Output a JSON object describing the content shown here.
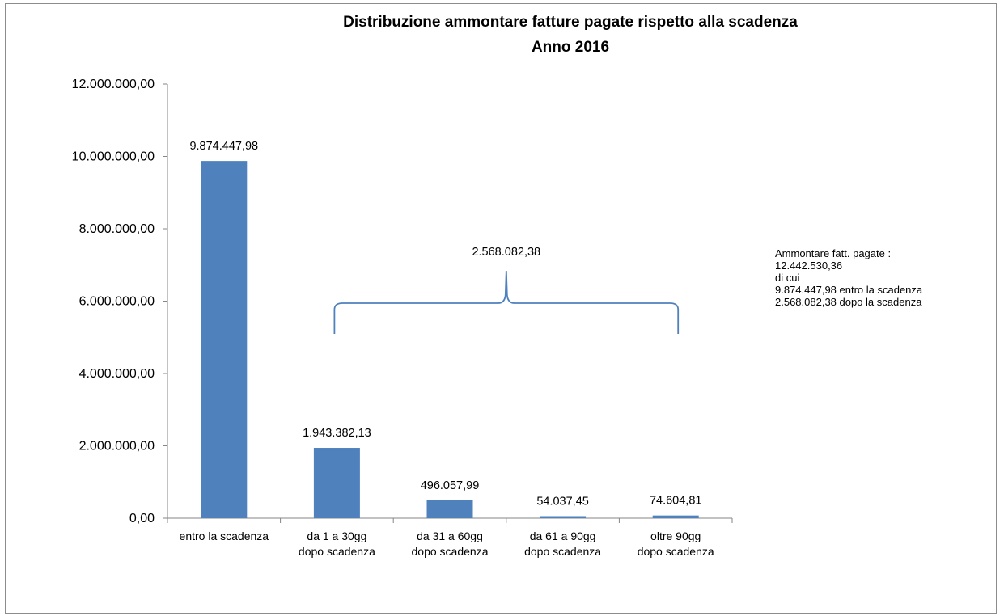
{
  "chart_data": {
    "type": "bar",
    "title": "Distribuzione ammontare fatture pagate  rispetto alla scadenza",
    "subtitle": "Anno 2016",
    "categories": [
      [
        "entro la scadenza"
      ],
      [
        "da 1 a 30gg",
        "dopo scadenza"
      ],
      [
        "da 31 a 60gg",
        "dopo scadenza"
      ],
      [
        "da 61 a 90gg",
        "dopo scadenza"
      ],
      [
        "oltre 90gg",
        "dopo scadenza"
      ]
    ],
    "values": [
      9874447.98,
      1943382.13,
      496057.99,
      54037.45,
      74604.81
    ],
    "data_labels": [
      "9.874.447,98",
      "1.943.382,13",
      "496.057,99",
      "54.037,45",
      "74.604,81"
    ],
    "ylim": [
      0,
      12000000
    ],
    "y_ticks": [
      "0,00",
      "2.000.000,00",
      "4.000.000,00",
      "6.000.000,00",
      "8.000.000,00",
      "10.000.000,00",
      "12.000.000,00"
    ],
    "y_tick_values": [
      0,
      2000000,
      4000000,
      6000000,
      8000000,
      10000000,
      12000000
    ],
    "grid": false,
    "bar_color": "#4f81bd",
    "brace": {
      "label": "2.568.082,38",
      "spans_categories": [
        1,
        4
      ],
      "color": "#4f81bd"
    },
    "annotation_lines": [
      "Ammontare fatt. pagate :",
      "12.442.530,36",
      "di cui",
      "9.874.447,98  entro la scadenza",
      "2.568.082,38  dopo la scadenza"
    ]
  }
}
